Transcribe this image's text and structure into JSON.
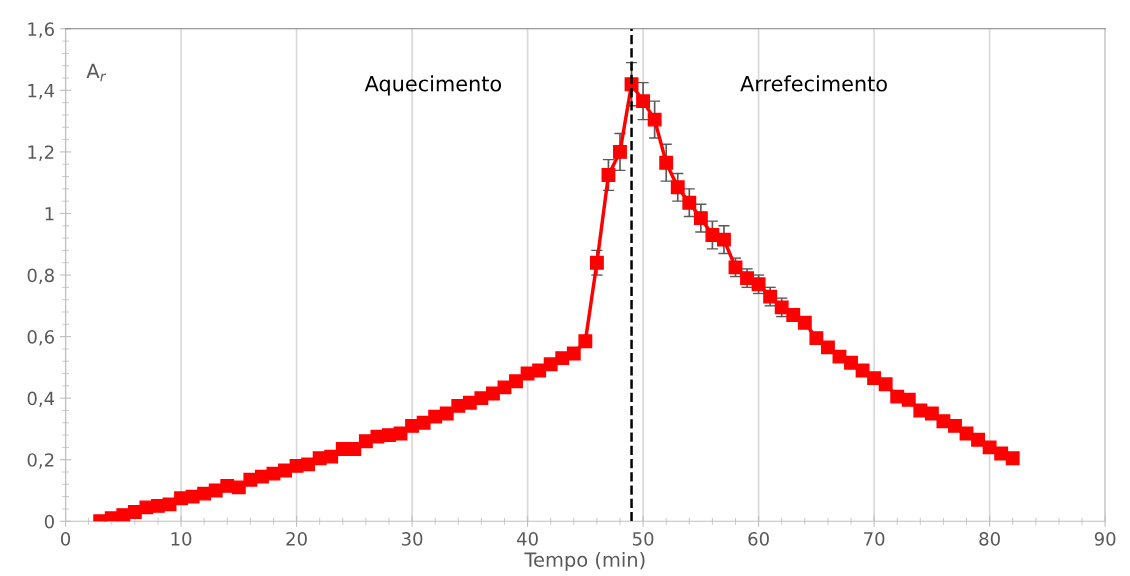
{
  "chart_data": {
    "type": "line",
    "xlabel": "Tempo (min)",
    "ylabel": "A$_{r}$",
    "x": [
      3,
      4,
      5,
      6,
      7,
      8,
      9,
      10,
      11,
      12,
      13,
      14,
      15,
      16,
      17,
      18,
      19,
      20,
      21,
      22,
      23,
      24,
      25,
      26,
      27,
      28,
      29,
      30,
      31,
      32,
      33,
      34,
      35,
      36,
      37,
      38,
      39,
      40,
      41,
      42,
      43,
      44,
      45,
      46,
      47,
      48,
      49,
      50,
      51,
      52,
      53,
      54,
      55,
      56,
      57,
      58,
      59,
      60,
      61,
      62,
      63,
      64,
      65,
      66,
      67,
      68,
      69,
      70,
      71,
      72,
      73,
      74,
      75,
      76,
      77,
      78,
      79,
      80,
      81,
      82
    ],
    "series": [
      {
        "color": "#ff0000",
        "marker": "square",
        "line_style": "solid",
        "values": [
          0.0,
          0.01,
          0.02,
          0.03,
          0.045,
          0.05,
          0.055,
          0.075,
          0.08,
          0.09,
          0.1,
          0.115,
          0.11,
          0.135,
          0.145,
          0.155,
          0.165,
          0.18,
          0.185,
          0.205,
          0.21,
          0.235,
          0.235,
          0.26,
          0.275,
          0.28,
          0.285,
          0.31,
          0.32,
          0.34,
          0.35,
          0.375,
          0.385,
          0.4,
          0.415,
          0.435,
          0.455,
          0.48,
          0.49,
          0.51,
          0.53,
          0.545,
          0.585,
          0.84,
          1.125,
          1.2,
          1.42,
          1.365,
          1.305,
          1.165,
          1.085,
          1.035,
          0.985,
          0.93,
          0.915,
          0.825,
          0.79,
          0.77,
          0.73,
          0.695,
          0.67,
          0.645,
          0.595,
          0.565,
          0.535,
          0.515,
          0.49,
          0.465,
          0.445,
          0.405,
          0.395,
          0.36,
          0.35,
          0.325,
          0.31,
          0.285,
          0.265,
          0.24,
          0.22,
          0.205
        ],
        "errors": [
          null,
          null,
          null,
          null,
          null,
          null,
          null,
          null,
          null,
          null,
          null,
          null,
          null,
          null,
          null,
          null,
          null,
          null,
          null,
          null,
          null,
          null,
          null,
          null,
          null,
          null,
          null,
          null,
          null,
          null,
          null,
          null,
          null,
          null,
          null,
          null,
          null,
          null,
          null,
          null,
          null,
          null,
          null,
          0.04,
          0.05,
          0.06,
          0.07,
          0.06,
          0.06,
          0.06,
          0.045,
          0.045,
          0.045,
          0.045,
          0.045,
          0.03,
          0.03,
          0.03,
          0.03,
          0.03,
          null,
          null,
          null,
          null,
          null,
          null,
          null,
          null,
          null,
          null,
          null,
          null,
          null,
          null,
          null,
          null,
          null,
          null,
          null,
          null
        ]
      }
    ],
    "xlim": [
      0,
      90
    ],
    "xticks": [
      0,
      10,
      20,
      30,
      40,
      50,
      60,
      70,
      80,
      90
    ],
    "ylim": [
      0,
      1.6
    ],
    "yticks": [
      {
        "value": 0,
        "label": "0"
      },
      {
        "value": 0.2,
        "label": "0,2"
      },
      {
        "value": 0.4,
        "label": "0,4"
      },
      {
        "value": 0.6,
        "label": "0,6"
      },
      {
        "value": 0.8,
        "label": "0,8"
      },
      {
        "value": 1,
        "label": "1"
      },
      {
        "value": 1.2,
        "label": "1,2"
      },
      {
        "value": 1.4,
        "label": "1,4"
      },
      {
        "value": 1.6,
        "label": "1,6"
      }
    ],
    "grid": "x",
    "ref_lines": [
      {
        "axis": "x",
        "value": 49,
        "color": "#000000",
        "line_style": "dashed"
      }
    ],
    "annotations": [
      "Aquecimento",
      "Arrefecimento"
    ]
  }
}
